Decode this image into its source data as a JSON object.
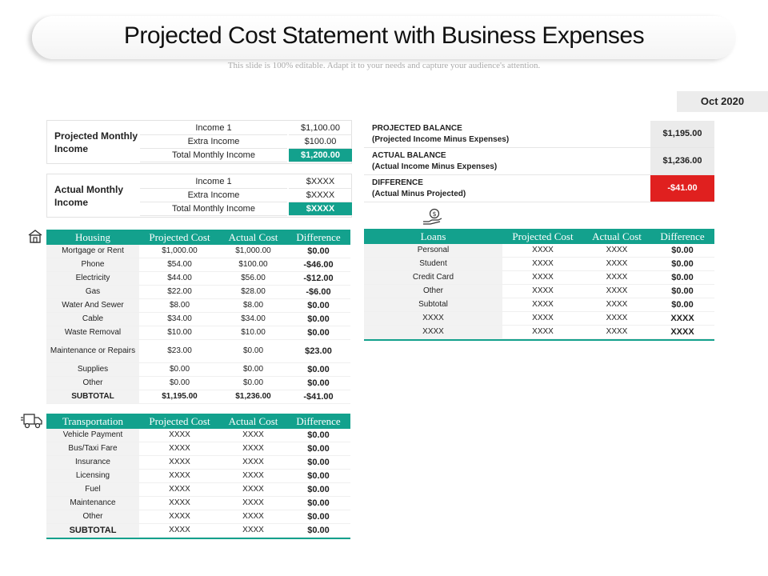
{
  "header": {
    "title": "Projected Cost Statement with Business Expenses",
    "subtitle": "This slide is 100% editable. Adapt it to your needs and capture your audience's attention.",
    "date": "Oct 2020"
  },
  "projected_income": {
    "label": "Projected Monthly Income",
    "rows": [
      {
        "name": "Income 1",
        "value": "$1,100.00"
      },
      {
        "name": "Extra Income",
        "value": "$100.00"
      },
      {
        "name": "Total Monthly Income",
        "value": "$1,200.00"
      }
    ]
  },
  "actual_income": {
    "label": "Actual Monthly Income",
    "rows": [
      {
        "name": "Income 1",
        "value": "$XXXX"
      },
      {
        "name": "Extra Income",
        "value": "$XXXX"
      },
      {
        "name": "Total Monthly Income",
        "value": "$XXXX"
      }
    ]
  },
  "balances": [
    {
      "line1": "PROJECTED BALANCE",
      "line2": "(Projected Income Minus Expenses)",
      "value": "$1,195.00"
    },
    {
      "line1": "ACTUAL BALANCE",
      "line2": "(Actual Income Minus Expenses)",
      "value": "$1,236.00"
    },
    {
      "line1": "DIFFERENCE",
      "line2": "(Actual Minus Projected)",
      "value": "-$41.00"
    }
  ],
  "housing": {
    "headers": [
      "Housing",
      "Projected Cost",
      "Actual Cost",
      "Difference"
    ],
    "rows": [
      [
        "Mortgage or Rent",
        "$1,000.00",
        "$1,000.00",
        "$0.00"
      ],
      [
        "Phone",
        "$54.00",
        "$100.00",
        "-$46.00"
      ],
      [
        "Electricity",
        "$44.00",
        "$56.00",
        "-$12.00"
      ],
      [
        "Gas",
        "$22.00",
        "$28.00",
        "-$6.00"
      ],
      [
        "Water And Sewer",
        "$8.00",
        "$8.00",
        "$0.00"
      ],
      [
        "Cable",
        "$34.00",
        "$34.00",
        "$0.00"
      ],
      [
        "Waste Removal",
        "$10.00",
        "$10.00",
        "$0.00"
      ],
      [
        "Maintenance or Repairs",
        "$23.00",
        "$0.00",
        "$23.00"
      ],
      [
        "Supplies",
        "$0.00",
        "$0.00",
        "$0.00"
      ],
      [
        "Other",
        "$0.00",
        "$0.00",
        "$0.00"
      ]
    ],
    "subtotal": [
      "SUBTOTAL",
      "$1,195.00",
      "$1,236.00",
      "-$41.00"
    ]
  },
  "transportation": {
    "headers": [
      "Transportation",
      "Projected Cost",
      "Actual Cost",
      "Difference"
    ],
    "rows": [
      [
        "Vehicle Payment",
        "XXXX",
        "XXXX",
        "$0.00"
      ],
      [
        "Bus/Taxi Fare",
        "XXXX",
        "XXXX",
        "$0.00"
      ],
      [
        "Insurance",
        "XXXX",
        "XXXX",
        "$0.00"
      ],
      [
        "Licensing",
        "XXXX",
        "XXXX",
        "$0.00"
      ],
      [
        "Fuel",
        "XXXX",
        "XXXX",
        "$0.00"
      ],
      [
        "Maintenance",
        "XXXX",
        "XXXX",
        "$0.00"
      ],
      [
        "Other",
        "XXXX",
        "XXXX",
        "$0.00"
      ]
    ],
    "subtotal": [
      "SUBTOTAL",
      "XXXX",
      "XXXX",
      "$0.00"
    ]
  },
  "loans": {
    "headers": [
      "Loans",
      "Projected Cost",
      "Actual Cost",
      "Difference"
    ],
    "rows": [
      [
        "Personal",
        "XXXX",
        "XXXX",
        "$0.00"
      ],
      [
        "Student",
        "XXXX",
        "XXXX",
        "$0.00"
      ],
      [
        "Credit Card",
        "XXXX",
        "XXXX",
        "$0.00"
      ],
      [
        "Other",
        "XXXX",
        "XXXX",
        "$0.00"
      ],
      [
        "Subtotal",
        "XXXX",
        "XXXX",
        "$0.00"
      ],
      [
        "XXXX",
        "XXXX",
        "XXXX",
        "XXXX"
      ],
      [
        "XXXX",
        "XXXX",
        "XXXX",
        "XXXX"
      ]
    ]
  },
  "icons": {
    "housing": "house-icon",
    "loans": "money-hand-icon",
    "transportation": "delivery-truck-icon"
  },
  "colors": {
    "accent": "#13a18d",
    "negative": "#e0201f",
    "cell_gray": "#ebebeb"
  }
}
